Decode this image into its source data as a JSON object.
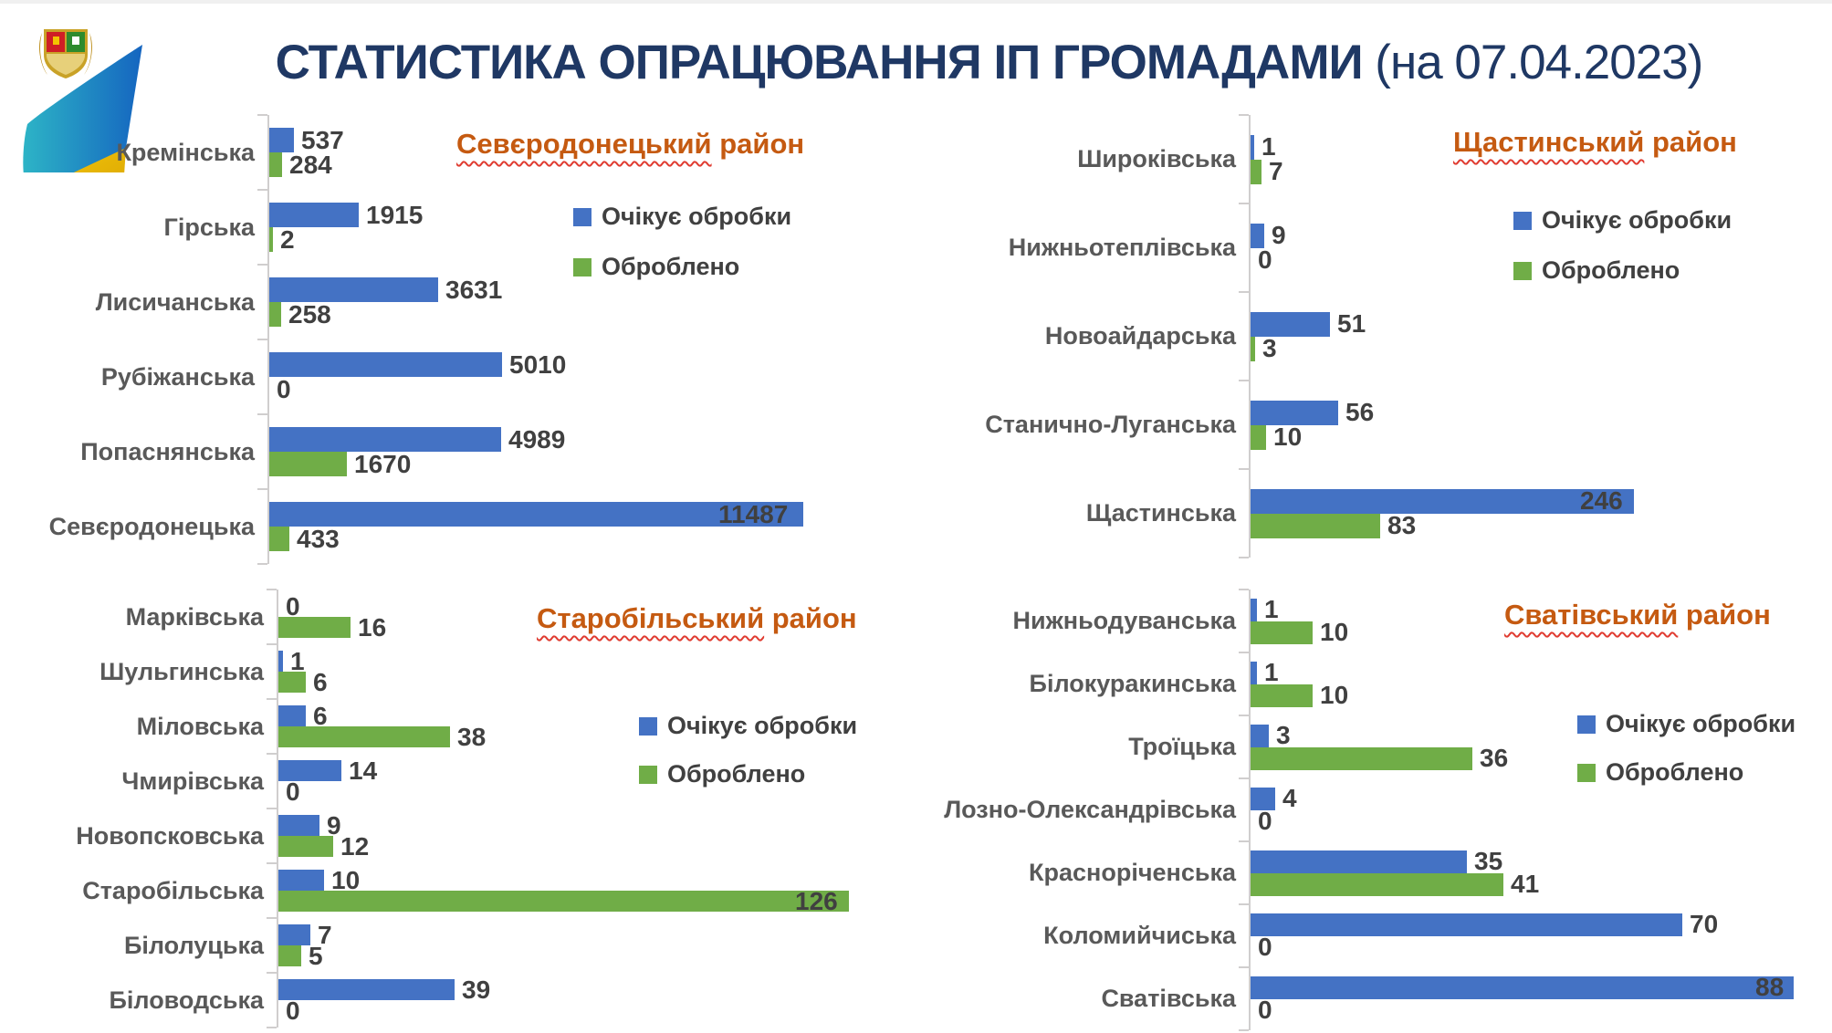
{
  "header": {
    "title_bold": "СТАТИСТИКА ОПРАЦЮВАННЯ ІП ГРОМАДАМИ",
    "title_date": " (на 07.04.2023)",
    "title_color": "#1f3864",
    "logo_icon": "luhansk-region-emblem-logo"
  },
  "legend": {
    "wait_label": "Очікує обробки",
    "done_label": "Оброблено"
  },
  "colors": {
    "wait": "#4472c4",
    "done": "#70ad47",
    "district_title": "#c55a11",
    "squiggle": "#e03c31",
    "value_label": "#404040",
    "category_label": "#595959",
    "axis": "#d0cece",
    "title_navy": "#1f3864"
  },
  "chart_data": [
    {
      "type": "bar",
      "orientation": "horizontal",
      "district": "Севєродонецький район",
      "data_labels": true,
      "categories": [
        "Кремінська",
        "Гірська",
        "Лисичанська",
        "Рубіжанська",
        "Попаснянська",
        "Севєродонецька"
      ],
      "series": [
        {
          "name": "Очікує обробки",
          "color": "#4472c4",
          "values": [
            537,
            1915,
            3631,
            5010,
            4989,
            11487
          ]
        },
        {
          "name": "Оброблено",
          "color": "#70ad47",
          "values": [
            284,
            2,
            258,
            0,
            1670,
            433
          ]
        }
      ]
    },
    {
      "type": "bar",
      "orientation": "horizontal",
      "district": "Щастинський район",
      "data_labels": true,
      "categories": [
        "Широківська",
        "Нижньотеплівська",
        "Новоайдарська",
        "Станично-Луганська",
        "Щастинська"
      ],
      "series": [
        {
          "name": "Очікує обробки",
          "color": "#4472c4",
          "values": [
            1,
            9,
            51,
            56,
            246
          ]
        },
        {
          "name": "Оброблено",
          "color": "#70ad47",
          "values": [
            7,
            0,
            3,
            10,
            83
          ]
        }
      ]
    },
    {
      "type": "bar",
      "orientation": "horizontal",
      "district": "Старобільський район",
      "data_labels": true,
      "categories": [
        "Марківська",
        "Шульгинська",
        "Міловська",
        "Чмирівська",
        "Новопсковська",
        "Старобільська",
        "Білолуцька",
        "Біловодська"
      ],
      "series": [
        {
          "name": "Очікує обробки",
          "color": "#4472c4",
          "values": [
            0,
            1,
            6,
            14,
            9,
            10,
            7,
            39
          ]
        },
        {
          "name": "Оброблено",
          "color": "#70ad47",
          "values": [
            16,
            6,
            38,
            0,
            12,
            126,
            5,
            0
          ]
        }
      ]
    },
    {
      "type": "bar",
      "orientation": "horizontal",
      "district": "Сватівський район",
      "data_labels": true,
      "categories": [
        "Нижньодуванська",
        "Білокуракинська",
        "Троїцька",
        "Лозно-Олександрівська",
        "Красноріченська",
        "Коломийчиська",
        "Сватівська"
      ],
      "series": [
        {
          "name": "Очікує обробки",
          "color": "#4472c4",
          "values": [
            1,
            1,
            3,
            4,
            35,
            70,
            88
          ]
        },
        {
          "name": "Оброблено",
          "color": "#70ad47",
          "values": [
            10,
            10,
            36,
            0,
            41,
            0,
            0
          ]
        }
      ]
    }
  ]
}
